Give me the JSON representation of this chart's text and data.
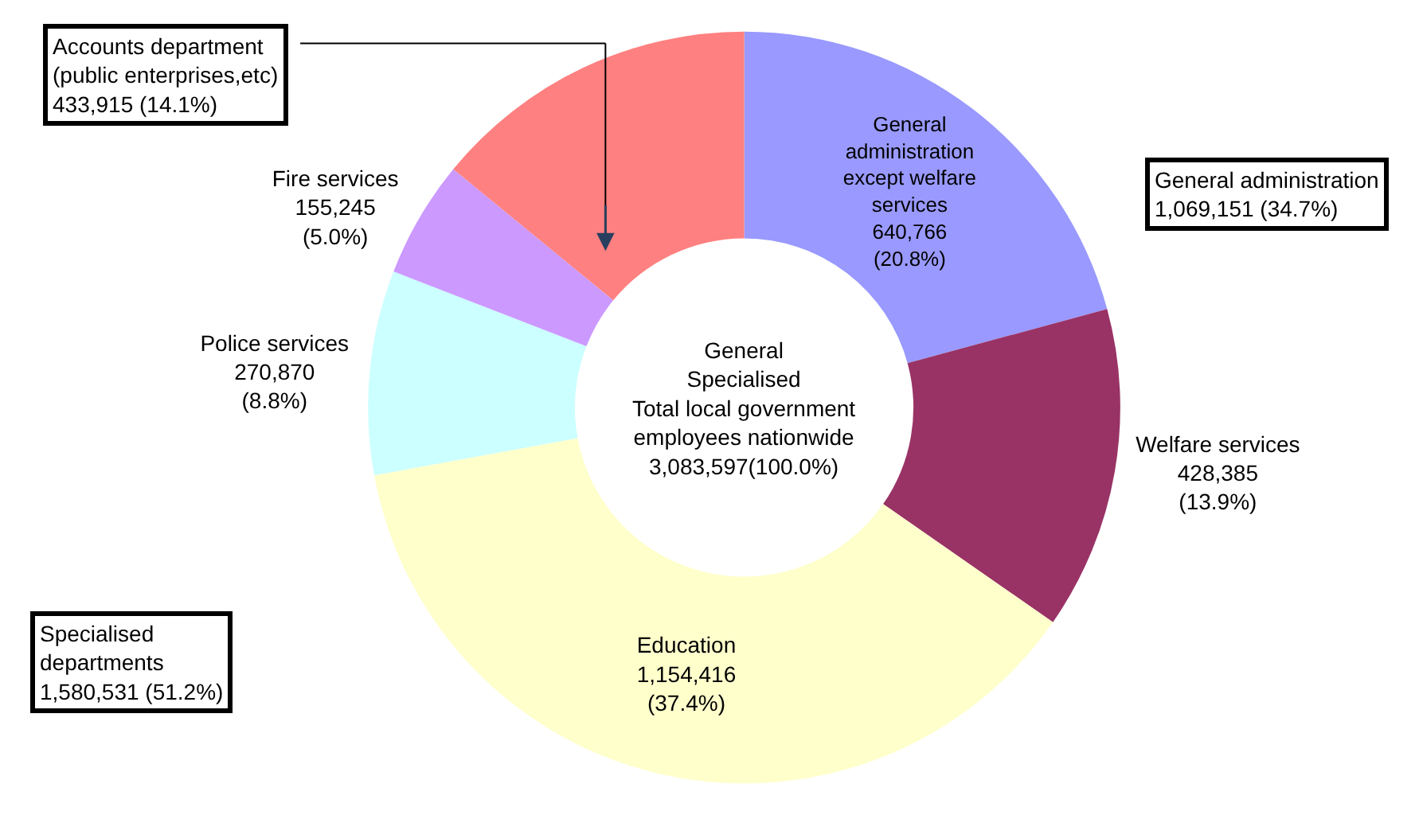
{
  "chart_data": {
    "type": "donut",
    "categories": [
      "General\nadministration\nexcept welfare\nservices",
      "Welfare services",
      "Education",
      "Police services",
      "Fire services",
      null
    ],
    "values": [
      640766,
      428385,
      1154416,
      270870,
      155245,
      433915
    ],
    "colors": [
      "#9999ff",
      "#993366",
      "#ffffcc",
      "#ccffff",
      "#cc99ff",
      "#ff8080"
    ],
    "value_labels": [
      "640,766\n(20.8%)",
      "428,385\n(13.9%)",
      "1,154,416\n(37.4%)",
      "270,870\n(8.8%)",
      "155,245\n(5.0%)",
      null
    ],
    "annotations": [
      "Accounts department\n(public enterprises,etc)\n433,915 (14.1%)",
      "General administration\n1,069,151 (34.7%)",
      "Specialised\ndepartments\n1,580,531 (51.2%)",
      "General\nSpecialised\nTotal local government\nemployees nationwide\n3,083,597(100.0%)"
    ],
    "legend": false
  }
}
